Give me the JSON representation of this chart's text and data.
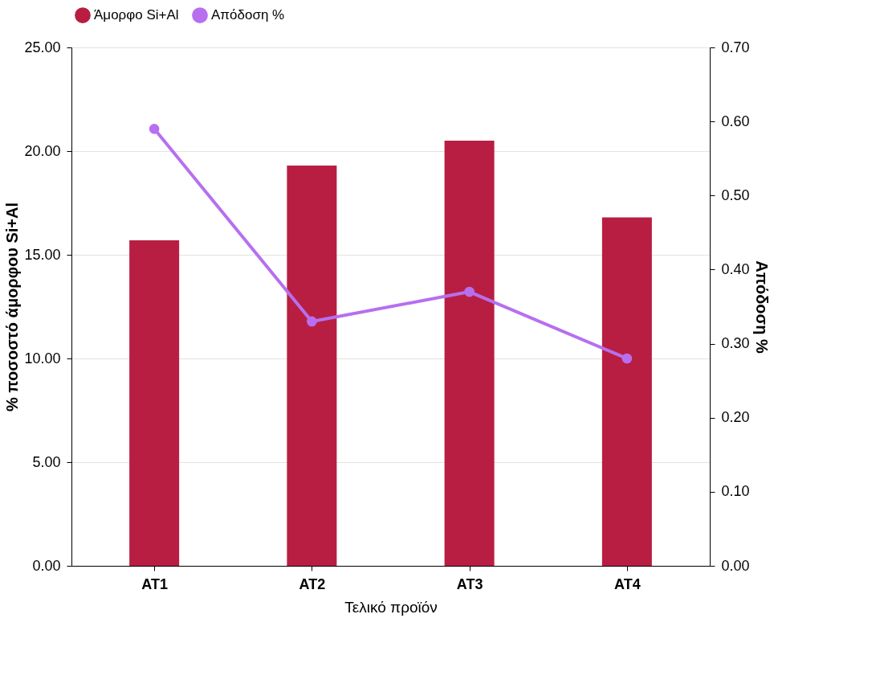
{
  "chart_data": {
    "type": "bar",
    "xlabel": "Τελικό προϊόν",
    "ylabel": "% ποσοστό άμορφου Si+Al",
    "y2label": "Απόδοση %",
    "categories": [
      "AT1",
      "AT2",
      "AT3",
      "AT4"
    ],
    "series": [
      {
        "name": "Άμορφο Si+Al",
        "color": "#b81e41",
        "values": [
          15.7,
          19.3,
          20.5,
          16.8
        ]
      },
      {
        "name": "Απόδοση %",
        "type": "line",
        "axis": "y2",
        "color": "#b76ff0",
        "values": [
          0.59,
          0.33,
          0.37,
          0.28
        ]
      }
    ],
    "ylim": [
      0,
      25
    ],
    "yticks": [
      {
        "value": 0,
        "label": "0.00"
      },
      {
        "value": 5,
        "label": "5.00"
      },
      {
        "value": 10,
        "label": "10.00"
      },
      {
        "value": 15,
        "label": "15.00"
      },
      {
        "value": 20,
        "label": "20.00"
      },
      {
        "value": 25,
        "label": "25.00"
      }
    ],
    "y2lim": [
      0,
      0.7
    ],
    "y2ticks": [
      {
        "value": 0,
        "label": "0.00"
      },
      {
        "value": 0.1,
        "label": "0.10"
      },
      {
        "value": 0.2,
        "label": "0.20"
      },
      {
        "value": 0.3,
        "label": "0.30"
      },
      {
        "value": 0.4,
        "label": "0.40"
      },
      {
        "value": 0.5,
        "label": "0.50"
      },
      {
        "value": 0.6,
        "label": "0.60"
      },
      {
        "value": 0.7,
        "label": "0.70"
      }
    ],
    "grid": "y",
    "legend": "top",
    "marker": "circle",
    "line_style": "solid"
  }
}
